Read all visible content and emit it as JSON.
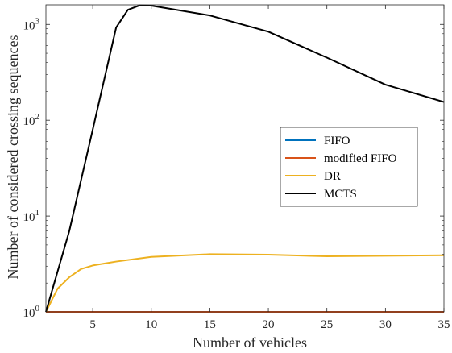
{
  "chart_data": {
    "type": "line",
    "title": "",
    "xlabel": "Number of vehicles",
    "ylabel": "Number of considered crossing sequences",
    "xlim": [
      1,
      35
    ],
    "ylim": [
      1,
      1600
    ],
    "yscale": "log",
    "grid": false,
    "legend_position": "center-right",
    "x_ticks": [
      5,
      10,
      15,
      20,
      25,
      30,
      35
    ],
    "x_tick_labels": [
      "5",
      "10",
      "15",
      "20",
      "25",
      "30",
      "35"
    ],
    "y_ticks": [
      1,
      10,
      100,
      1000
    ],
    "y_tick_labels": [
      {
        "base": "10",
        "exp": "0"
      },
      {
        "base": "10",
        "exp": "1"
      },
      {
        "base": "10",
        "exp": "2"
      },
      {
        "base": "10",
        "exp": "3"
      }
    ],
    "series": [
      {
        "name": "FIFO",
        "color": "#0072BD",
        "x": [
          1,
          2,
          3,
          4,
          5,
          7,
          10,
          15,
          20,
          25,
          30,
          35
        ],
        "y": [
          1,
          1,
          1,
          1,
          1,
          1,
          1,
          1,
          1,
          1,
          1,
          1
        ]
      },
      {
        "name": "modified FIFO",
        "color": "#D95319",
        "x": [
          1,
          2,
          3,
          4,
          5,
          7,
          10,
          15,
          20,
          25,
          30,
          35
        ],
        "y": [
          1,
          1,
          1,
          1,
          1,
          1,
          1,
          1,
          1,
          1,
          1,
          1
        ]
      },
      {
        "name": "DR",
        "color": "#EDB120",
        "x": [
          1,
          2,
          3,
          4,
          5,
          7,
          10,
          15,
          20,
          25,
          30,
          35
        ],
        "y": [
          1,
          1.75,
          2.3,
          2.8,
          3.05,
          3.35,
          3.75,
          4.0,
          3.95,
          3.8,
          3.85,
          3.9
        ]
      },
      {
        "name": "MCTS",
        "color": "#000000",
        "x": [
          1,
          3,
          5,
          7,
          8,
          9,
          10,
          15,
          20,
          25,
          30,
          35
        ],
        "y": [
          1,
          7,
          80,
          930,
          1420,
          1580,
          1570,
          1240,
          840,
          450,
          235,
          155
        ]
      }
    ]
  }
}
